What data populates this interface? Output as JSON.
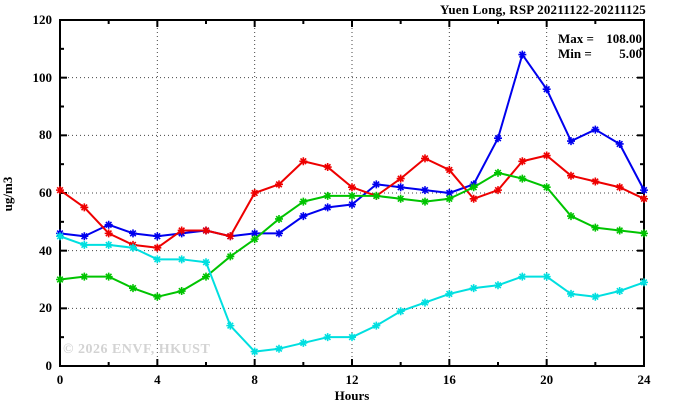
{
  "header": {
    "title": "Yuen Long, RSP 20211122-20211125"
  },
  "stats": {
    "rows": [
      {
        "label": "Max =",
        "value": "108.00"
      },
      {
        "label": "Min =",
        "value": "5.00"
      }
    ]
  },
  "watermark": "© 2026 ENVF, HKUST",
  "chart_data": {
    "type": "line",
    "title": "Yuen Long, RSP 20211122-20211125",
    "xlabel": "Hours",
    "ylabel": "ug/m3",
    "xlim": [
      0,
      24
    ],
    "ylim": [
      0,
      120
    ],
    "x_major_ticks": [
      0,
      4,
      8,
      12,
      16,
      20,
      24
    ],
    "x_minor_step": 2,
    "y_major_ticks": [
      0,
      20,
      40,
      60,
      80,
      100,
      120
    ],
    "y_minor_step": 10,
    "grid": true,
    "legend": "none",
    "marker": "asterisk",
    "max_value": 108.0,
    "min_value": 5.0,
    "x": [
      0,
      1,
      2,
      3,
      4,
      5,
      6,
      7,
      8,
      9,
      10,
      11,
      12,
      13,
      14,
      15,
      16,
      17,
      18,
      19,
      20,
      21,
      22,
      23,
      24
    ],
    "series": [
      {
        "name": "blue",
        "color": "#0000ee",
        "values": [
          46,
          45,
          49,
          46,
          45,
          46,
          47,
          45,
          46,
          46,
          52,
          55,
          56,
          63,
          62,
          61,
          60,
          63,
          79,
          108,
          96,
          78,
          82,
          77,
          61
        ]
      },
      {
        "name": "red",
        "color": "#ee0000",
        "values": [
          61,
          55,
          46,
          42,
          41,
          47,
          47,
          45,
          60,
          63,
          71,
          69,
          62,
          59,
          65,
          72,
          68,
          58,
          61,
          71,
          73,
          66,
          64,
          62,
          58
        ]
      },
      {
        "name": "green",
        "color": "#00c400",
        "values": [
          30,
          31,
          31,
          27,
          24,
          26,
          31,
          38,
          44,
          51,
          57,
          59,
          59,
          59,
          58,
          57,
          58,
          62,
          67,
          65,
          62,
          52,
          48,
          47,
          46
        ]
      },
      {
        "name": "cyan",
        "color": "#00dfe0",
        "values": [
          45,
          42,
          42,
          41,
          37,
          37,
          36,
          14,
          5,
          6,
          8,
          10,
          10,
          14,
          19,
          22,
          25,
          27,
          28,
          31,
          31,
          25,
          24,
          26,
          29
        ]
      }
    ]
  }
}
